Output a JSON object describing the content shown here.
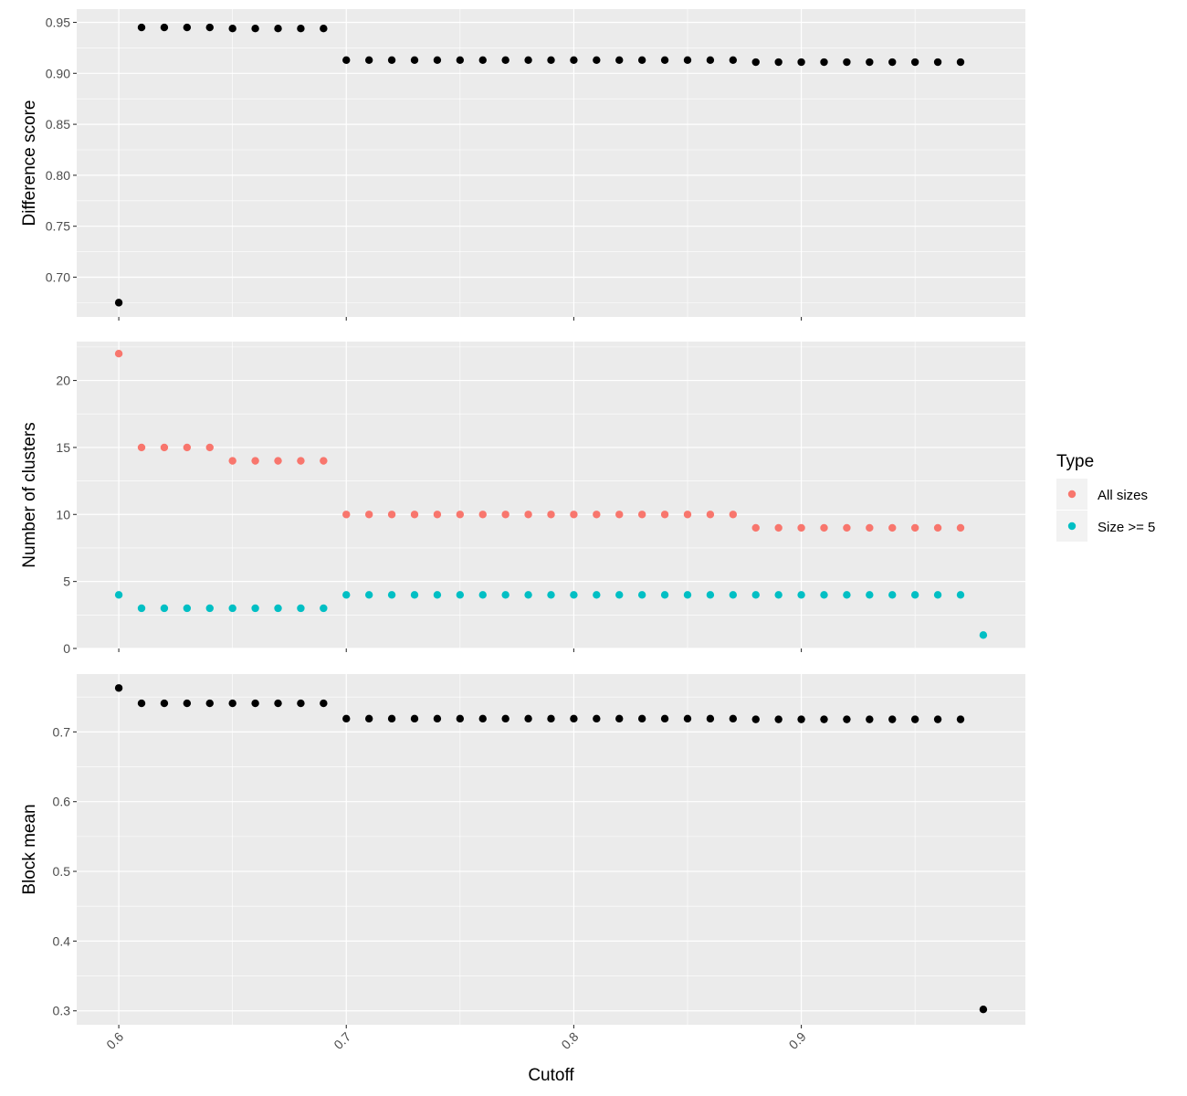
{
  "chart_data": {
    "type": "scatter",
    "xlabel": "Cutoff",
    "x_ticks": [
      "0.6",
      "0.7",
      "0.8",
      "0.9"
    ],
    "x_tick_values": [
      0.6,
      0.7,
      0.8,
      0.9
    ],
    "xlim": [
      0.5815,
      0.9985
    ],
    "grid": true,
    "legend": {
      "title": "Type",
      "position": "right",
      "entries": [
        {
          "label": "All sizes",
          "color": "#F8766D"
        },
        {
          "label": "Size >= 5",
          "color": "#00BFC4"
        }
      ]
    },
    "panels": [
      {
        "ylabel": "Difference score",
        "ylim": [
          0.661,
          0.963
        ],
        "y_ticks": [
          "0.70",
          "0.75",
          "0.80",
          "0.85",
          "0.90",
          "0.95"
        ],
        "y_tick_values": [
          0.7,
          0.75,
          0.8,
          0.85,
          0.9,
          0.95
        ],
        "series": [
          {
            "color": "#000000",
            "x": [
              0.6,
              0.61,
              0.62,
              0.63,
              0.64,
              0.65,
              0.66,
              0.67,
              0.68,
              0.69,
              0.7,
              0.71,
              0.72,
              0.73,
              0.74,
              0.75,
              0.76,
              0.77,
              0.78,
              0.79,
              0.8,
              0.81,
              0.82,
              0.83,
              0.84,
              0.85,
              0.86,
              0.87,
              0.88,
              0.89,
              0.9,
              0.91,
              0.92,
              0.93,
              0.94,
              0.95,
              0.96,
              0.97
            ],
            "y": [
              0.675,
              0.945,
              0.945,
              0.945,
              0.945,
              0.944,
              0.944,
              0.944,
              0.944,
              0.944,
              0.913,
              0.913,
              0.913,
              0.913,
              0.913,
              0.913,
              0.913,
              0.913,
              0.913,
              0.913,
              0.913,
              0.913,
              0.913,
              0.913,
              0.913,
              0.913,
              0.913,
              0.913,
              0.911,
              0.911,
              0.911,
              0.911,
              0.911,
              0.911,
              0.911,
              0.911,
              0.911,
              0.911
            ]
          }
        ]
      },
      {
        "ylabel": "Number of clusters",
        "ylim": [
          0,
          22.9
        ],
        "y_ticks": [
          "0",
          "5",
          "10",
          "15",
          "20"
        ],
        "y_tick_values": [
          0,
          5,
          10,
          15,
          20
        ],
        "series": [
          {
            "name": "All sizes",
            "color": "#F8766D",
            "x": [
              0.6,
              0.61,
              0.62,
              0.63,
              0.64,
              0.65,
              0.66,
              0.67,
              0.68,
              0.69,
              0.7,
              0.71,
              0.72,
              0.73,
              0.74,
              0.75,
              0.76,
              0.77,
              0.78,
              0.79,
              0.8,
              0.81,
              0.82,
              0.83,
              0.84,
              0.85,
              0.86,
              0.87,
              0.88,
              0.89,
              0.9,
              0.91,
              0.92,
              0.93,
              0.94,
              0.95,
              0.96,
              0.97
            ],
            "y": [
              22,
              15,
              15,
              15,
              15,
              14,
              14,
              14,
              14,
              14,
              10,
              10,
              10,
              10,
              10,
              10,
              10,
              10,
              10,
              10,
              10,
              10,
              10,
              10,
              10,
              10,
              10,
              10,
              9,
              9,
              9,
              9,
              9,
              9,
              9,
              9,
              9,
              9
            ]
          },
          {
            "name": "Size >= 5",
            "color": "#00BFC4",
            "x": [
              0.6,
              0.61,
              0.62,
              0.63,
              0.64,
              0.65,
              0.66,
              0.67,
              0.68,
              0.69,
              0.7,
              0.71,
              0.72,
              0.73,
              0.74,
              0.75,
              0.76,
              0.77,
              0.78,
              0.79,
              0.8,
              0.81,
              0.82,
              0.83,
              0.84,
              0.85,
              0.86,
              0.87,
              0.88,
              0.89,
              0.9,
              0.91,
              0.92,
              0.93,
              0.94,
              0.95,
              0.96,
              0.97,
              0.98
            ],
            "y": [
              4,
              3,
              3,
              3,
              3,
              3,
              3,
              3,
              3,
              3,
              4,
              4,
              4,
              4,
              4,
              4,
              4,
              4,
              4,
              4,
              4,
              4,
              4,
              4,
              4,
              4,
              4,
              4,
              4,
              4,
              4,
              4,
              4,
              4,
              4,
              4,
              4,
              4,
              1
            ]
          }
        ]
      },
      {
        "ylabel": "Block mean",
        "ylim": [
          0.28,
          0.783
        ],
        "y_ticks": [
          "0.3",
          "0.4",
          "0.5",
          "0.6",
          "0.7"
        ],
        "y_tick_values": [
          0.3,
          0.4,
          0.5,
          0.6,
          0.7
        ],
        "series": [
          {
            "color": "#000000",
            "x": [
              0.6,
              0.61,
              0.62,
              0.63,
              0.64,
              0.65,
              0.66,
              0.67,
              0.68,
              0.69,
              0.7,
              0.71,
              0.72,
              0.73,
              0.74,
              0.75,
              0.76,
              0.77,
              0.78,
              0.79,
              0.8,
              0.81,
              0.82,
              0.83,
              0.84,
              0.85,
              0.86,
              0.87,
              0.88,
              0.89,
              0.9,
              0.91,
              0.92,
              0.93,
              0.94,
              0.95,
              0.96,
              0.97,
              0.98
            ],
            "y": [
              0.763,
              0.741,
              0.741,
              0.741,
              0.741,
              0.741,
              0.741,
              0.741,
              0.741,
              0.741,
              0.719,
              0.719,
              0.719,
              0.719,
              0.719,
              0.719,
              0.719,
              0.719,
              0.719,
              0.719,
              0.719,
              0.719,
              0.719,
              0.719,
              0.719,
              0.719,
              0.719,
              0.719,
              0.718,
              0.718,
              0.718,
              0.718,
              0.718,
              0.718,
              0.718,
              0.718,
              0.718,
              0.718,
              0.302
            ]
          }
        ]
      }
    ]
  }
}
